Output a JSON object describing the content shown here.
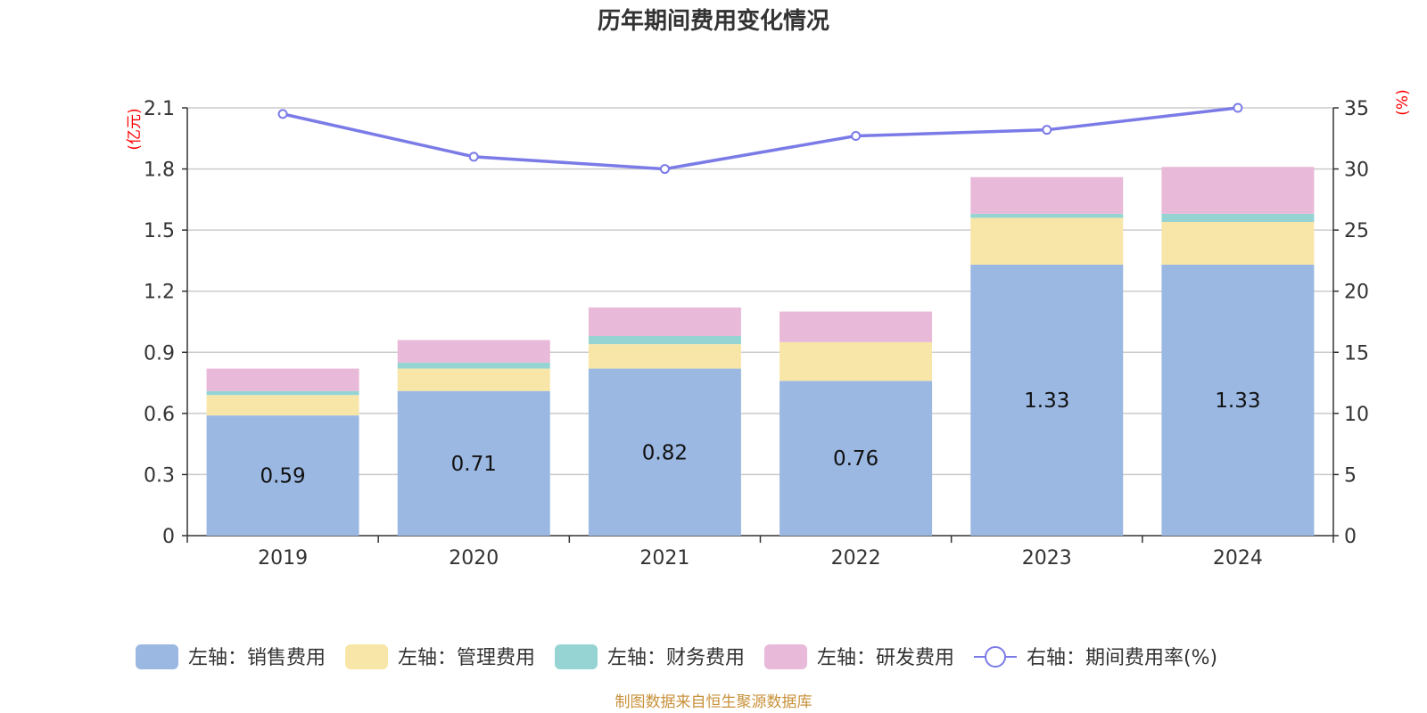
{
  "chart_data": {
    "type": "bar",
    "title": "历年期间费用变化情况",
    "categories": [
      "2019",
      "2020",
      "2021",
      "2022",
      "2023",
      "2024"
    ],
    "left_axis": {
      "unit": "(亿元)",
      "ticks": [
        "0",
        "0.3",
        "0.6",
        "0.9",
        "1.2",
        "1.5",
        "1.8",
        "2.1"
      ],
      "ylim": [
        0,
        2.1
      ]
    },
    "right_axis": {
      "unit": "(%)",
      "ticks": [
        "0",
        "5",
        "10",
        "15",
        "20",
        "25",
        "30",
        "35"
      ],
      "ylim": [
        0,
        35
      ]
    },
    "series": [
      {
        "name": "左轴：销售费用",
        "kind": "bar",
        "axis": "left",
        "color": "#9bb8e2",
        "values": [
          0.59,
          0.71,
          0.82,
          0.76,
          1.33,
          1.33
        ],
        "labels": [
          "0.59",
          "0.71",
          "0.82",
          "0.76",
          "1.33",
          "1.33"
        ]
      },
      {
        "name": "左轴：管理费用",
        "kind": "bar",
        "axis": "left",
        "color": "#f8e6a8",
        "values": [
          0.1,
          0.11,
          0.12,
          0.19,
          0.23,
          0.21
        ]
      },
      {
        "name": "左轴：财务费用",
        "kind": "bar",
        "axis": "left",
        "color": "#96d4d4",
        "values": [
          0.02,
          0.03,
          0.04,
          0.0,
          0.02,
          0.04
        ]
      },
      {
        "name": "左轴：研发费用",
        "kind": "bar",
        "axis": "left",
        "color": "#e8b9d8",
        "values": [
          0.11,
          0.11,
          0.14,
          0.15,
          0.18,
          0.23
        ]
      },
      {
        "name": "右轴：期间费用率(%)",
        "kind": "line",
        "axis": "right",
        "color": "#7b7be8",
        "values": [
          34.5,
          31.0,
          30.0,
          32.7,
          33.2,
          35.0
        ]
      }
    ],
    "source": "制图数据来自恒生聚源数据库"
  }
}
